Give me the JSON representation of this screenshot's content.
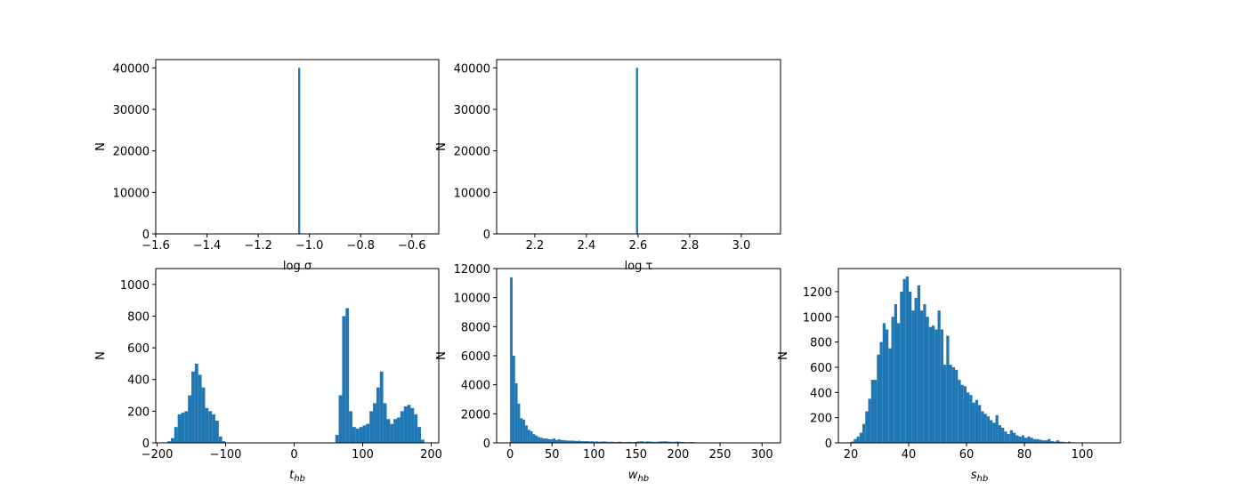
{
  "chart_data": [
    {
      "type": "histogram",
      "color": "#1f77b4",
      "xlabel": "log σ",
      "ylabel": "N",
      "bins": [
        -1.044,
        -1.036
      ],
      "counts": [
        40000
      ],
      "xlim": [
        -1.6,
        -0.495
      ],
      "ylim": [
        0,
        42000
      ],
      "xticks": [
        {
          "value": -1.6,
          "label": "−1.6"
        },
        {
          "value": -1.4,
          "label": "−1.4"
        },
        {
          "value": -1.2,
          "label": "−1.2"
        },
        {
          "value": -1.0,
          "label": "−1.0"
        },
        {
          "value": -0.8,
          "label": "−0.8"
        },
        {
          "value": -0.6,
          "label": "−0.6"
        }
      ],
      "yticks": [
        0,
        10000,
        20000,
        30000,
        40000
      ]
    },
    {
      "type": "histogram",
      "color": "#1f77b4",
      "xlabel": "log τ",
      "ylabel": "N",
      "bins": [
        2.592,
        2.6
      ],
      "counts": [
        40000
      ],
      "xlim": [
        2.052,
        3.152
      ],
      "ylim": [
        0,
        42000
      ],
      "xticks": [
        2.2,
        2.4,
        2.6,
        2.8,
        {
          "value": 3.0,
          "label": "3.0"
        }
      ],
      "yticks": [
        0,
        10000,
        20000,
        30000,
        40000
      ]
    },
    {
      "type": "histogram",
      "color": "#1f77b4",
      "xlabel": "t",
      "xlabel_sub": "hb",
      "ylabel": "N",
      "bins": [
        -185,
        -180,
        -175,
        -170,
        -165,
        -160,
        -155,
        -150,
        -145,
        -140,
        -135,
        -130,
        -125,
        -120,
        -115,
        -110,
        -105,
        -100,
        -95,
        -90,
        -85,
        -80,
        -75,
        -70,
        -65,
        -60,
        -55,
        -50,
        -45,
        -40,
        -35,
        -30,
        -25,
        -20,
        -15,
        -10,
        -5,
        0,
        5,
        10,
        15,
        20,
        25,
        30,
        35,
        40,
        45,
        50,
        55,
        60,
        65,
        70,
        75,
        80,
        85,
        90,
        95,
        100,
        105,
        110,
        115,
        120,
        125,
        130,
        135,
        140,
        145,
        150,
        155,
        160,
        165,
        170,
        175,
        180,
        185,
        190
      ],
      "counts": [
        10,
        30,
        100,
        180,
        190,
        200,
        300,
        450,
        500,
        430,
        350,
        220,
        200,
        180,
        140,
        40,
        10,
        0,
        0,
        0,
        0,
        0,
        0,
        0,
        0,
        0,
        0,
        0,
        0,
        0,
        0,
        0,
        0,
        0,
        0,
        0,
        0,
        0,
        0,
        0,
        0,
        0,
        0,
        0,
        0,
        0,
        0,
        0,
        0,
        50,
        300,
        800,
        850,
        200,
        100,
        90,
        100,
        110,
        120,
        200,
        250,
        350,
        450,
        250,
        150,
        120,
        150,
        160,
        200,
        230,
        240,
        220,
        180,
        100,
        20
      ],
      "xlim": [
        -202,
        211
      ],
      "ylim": [
        0,
        1100
      ],
      "xticks": [
        {
          "value": -200,
          "label": "−200"
        },
        {
          "value": -100,
          "label": "−100"
        },
        0,
        100,
        200
      ],
      "yticks": [
        0,
        200,
        400,
        600,
        800,
        1000
      ]
    },
    {
      "type": "histogram",
      "color": "#1f77b4",
      "xlabel": "w",
      "xlabel_sub": "hb",
      "ylabel": "N",
      "bins": [
        0,
        3,
        6,
        9,
        12,
        15,
        18,
        21,
        24,
        27,
        30,
        33,
        36,
        39,
        42,
        45,
        48,
        51,
        54,
        57,
        60,
        63,
        66,
        69,
        72,
        75,
        78,
        81,
        84,
        87,
        90,
        93,
        96,
        99,
        102,
        105,
        108,
        111,
        114,
        117,
        120,
        123,
        126,
        129,
        132,
        135,
        138,
        141,
        144,
        147,
        150,
        153,
        156,
        159,
        162,
        165,
        168,
        171,
        174,
        177,
        180,
        183,
        186,
        189,
        192,
        195,
        198,
        201,
        204,
        207,
        210,
        213,
        216,
        219,
        222,
        225,
        228,
        231,
        234,
        237,
        240,
        243,
        246,
        249,
        252,
        255,
        258,
        261,
        264,
        267,
        270,
        273,
        276,
        279,
        282,
        285,
        288,
        291,
        294,
        297,
        300
      ],
      "counts": [
        11400,
        6000,
        4100,
        2700,
        1700,
        1600,
        1200,
        900,
        800,
        600,
        500,
        400,
        350,
        300,
        300,
        250,
        250,
        300,
        200,
        250,
        200,
        180,
        170,
        150,
        160,
        140,
        130,
        150,
        120,
        110,
        120,
        100,
        110,
        90,
        100,
        80,
        90,
        100,
        80,
        70,
        80,
        60,
        70,
        80,
        60,
        50,
        60,
        70,
        50,
        60,
        90,
        100,
        110,
        80,
        100,
        90,
        80,
        70,
        80,
        90,
        100,
        110,
        90,
        80,
        70,
        80,
        90,
        70,
        60,
        50,
        40,
        60,
        50,
        40,
        30,
        20,
        30,
        20,
        10,
        20,
        10,
        20,
        10,
        10,
        30,
        10,
        0,
        10,
        5,
        0,
        0,
        0,
        0,
        0,
        0,
        0,
        0,
        0,
        0,
        0
      ],
      "xlim": [
        -16,
        322
      ],
      "ylim": [
        0,
        12000
      ],
      "xticks": [
        0,
        50,
        100,
        150,
        200,
        250,
        300
      ],
      "yticks": [
        0,
        2000,
        4000,
        6000,
        8000,
        10000,
        12000
      ]
    },
    {
      "type": "histogram",
      "color": "#1f77b4",
      "xlabel": "s",
      "xlabel_sub": "hb",
      "ylabel": "N",
      "bins": [
        20,
        21,
        22,
        23,
        24,
        25,
        26,
        27,
        28,
        29,
        30,
        31,
        32,
        33,
        34,
        35,
        36,
        37,
        38,
        39,
        40,
        41,
        42,
        43,
        44,
        45,
        46,
        47,
        48,
        49,
        50,
        51,
        52,
        53,
        54,
        55,
        56,
        57,
        58,
        59,
        60,
        61,
        62,
        63,
        64,
        65,
        66,
        67,
        68,
        69,
        70,
        71,
        72,
        73,
        74,
        75,
        76,
        77,
        78,
        79,
        80,
        81,
        82,
        83,
        84,
        85,
        86,
        87,
        88,
        89,
        90,
        91,
        92,
        93,
        94,
        95,
        96,
        97,
        98,
        99,
        100,
        101,
        102,
        103,
        104,
        105,
        106,
        107,
        108
      ],
      "counts": [
        10,
        30,
        50,
        80,
        150,
        250,
        350,
        500,
        500,
        700,
        800,
        950,
        900,
        750,
        1000,
        1100,
        950,
        1200,
        1300,
        1320,
        1200,
        1050,
        1150,
        1250,
        1050,
        1100,
        1000,
        920,
        930,
        900,
        1050,
        900,
        620,
        850,
        620,
        600,
        580,
        500,
        460,
        450,
        400,
        380,
        320,
        340,
        300,
        250,
        230,
        210,
        180,
        160,
        220,
        140,
        120,
        90,
        70,
        100,
        80,
        60,
        50,
        60,
        40,
        50,
        40,
        30,
        30,
        25,
        20,
        20,
        30,
        15,
        10,
        20,
        10,
        8,
        5,
        10,
        5,
        3,
        2,
        2,
        3,
        1,
        1,
        0,
        0,
        0,
        0,
        1
      ],
      "xlim": [
        15.7,
        113.2
      ],
      "ylim": [
        0,
        1383
      ],
      "xticks": [
        20,
        40,
        60,
        80,
        100
      ],
      "yticks": [
        0,
        200,
        400,
        600,
        800,
        1000,
        1200
      ]
    }
  ]
}
